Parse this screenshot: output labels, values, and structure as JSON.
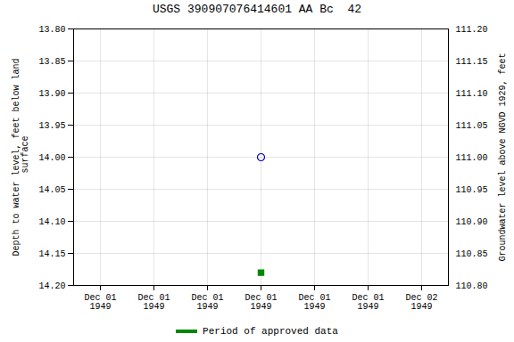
{
  "chart_data": {
    "type": "scatter",
    "title": "USGS 390907076414601 AA Bc  42",
    "y_label": "Depth to water level, feet below land\n surface",
    "y2_label": "Groundwater level above NGVD 1929, feet",
    "categories": [
      "Dec 01\n1949",
      "Dec 01\n1949",
      "Dec 01\n1949",
      "Dec 01\n1949",
      "Dec 01\n1949",
      "Dec 01\n1949",
      "Dec 02\n1949"
    ],
    "series": [
      {
        "color": "#0000cc",
        "marker": "open_circle",
        "values": [
          null,
          null,
          null,
          14.0,
          null,
          null,
          null
        ]
      },
      {
        "name": "Period of approved data",
        "color": "#008800",
        "marker": "filled_square",
        "values": [
          null,
          null,
          null,
          14.18,
          null,
          null,
          null
        ]
      }
    ],
    "ylim": [
      14.2,
      13.8
    ],
    "yticks": [
      {
        "value": 13.8,
        "label": "13.80"
      },
      {
        "value": 13.85,
        "label": "13.85"
      },
      {
        "value": 13.9,
        "label": "13.90"
      },
      {
        "value": 13.95,
        "label": "13.95"
      },
      {
        "value": 14.0,
        "label": "14.00"
      },
      {
        "value": 14.05,
        "label": "14.05"
      },
      {
        "value": 14.1,
        "label": "14.10"
      },
      {
        "value": 14.15,
        "label": "14.15"
      },
      {
        "value": 14.2,
        "label": "14.20"
      }
    ],
    "y2lim": [
      110.8,
      111.2
    ],
    "y2ticks": [
      {
        "value": 111.2,
        "label": "111.20"
      },
      {
        "value": 111.15,
        "label": "111.15"
      },
      {
        "value": 111.1,
        "label": "111.10"
      },
      {
        "value": 111.05,
        "label": "111.05"
      },
      {
        "value": 111.0,
        "label": "111.00"
      },
      {
        "value": 110.95,
        "label": "110.95"
      },
      {
        "value": 110.9,
        "label": "110.90"
      },
      {
        "value": 110.85,
        "label": "110.85"
      },
      {
        "value": 110.8,
        "label": "110.80"
      }
    ],
    "grid": true,
    "legend": "bottom"
  }
}
